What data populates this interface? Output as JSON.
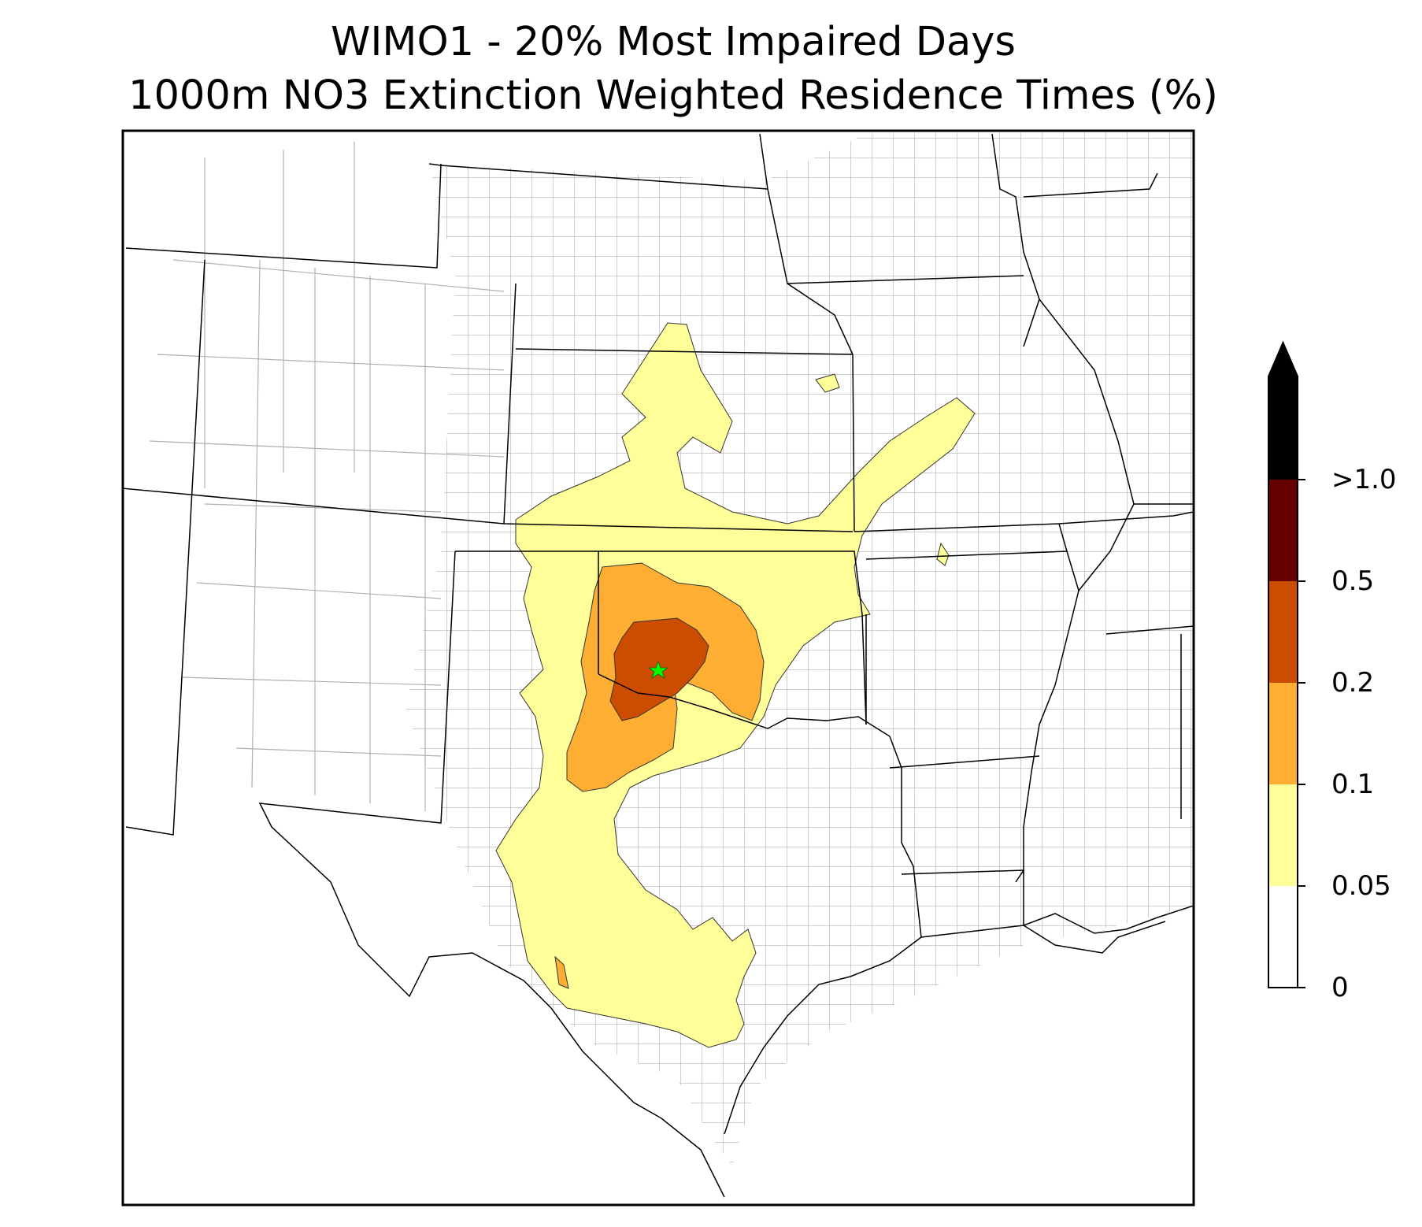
{
  "title": {
    "line1": "WIMO1 - 20% Most Impaired Days",
    "line2": "1000m NO3 Extinction Weighted Residence Times (%)"
  },
  "colorbar": {
    "ticks": [
      "0",
      "0.05",
      "0.1",
      "0.2",
      "0.5",
      ">1.0"
    ],
    "bins": [
      {
        "range": "0 - 0.05",
        "color": "#ffffff"
      },
      {
        "range": "0.05 - 0.1",
        "color": "#ffff99"
      },
      {
        "range": "0.1 - 0.2",
        "color": "#fdae33"
      },
      {
        "range": "0.2 - 0.5",
        "color": "#cc4c02"
      },
      {
        "range": "0.5 - 1.0",
        "color": "#660000"
      },
      {
        "range": ">1.0",
        "color": "#000000"
      }
    ],
    "extend": "max"
  },
  "map": {
    "region": "south-central United States",
    "receptor_marker": "green star",
    "receptor_color": "#00ff00",
    "state_boundary_color": "#000000",
    "county_boundary_color": "#a0a0a0"
  }
}
